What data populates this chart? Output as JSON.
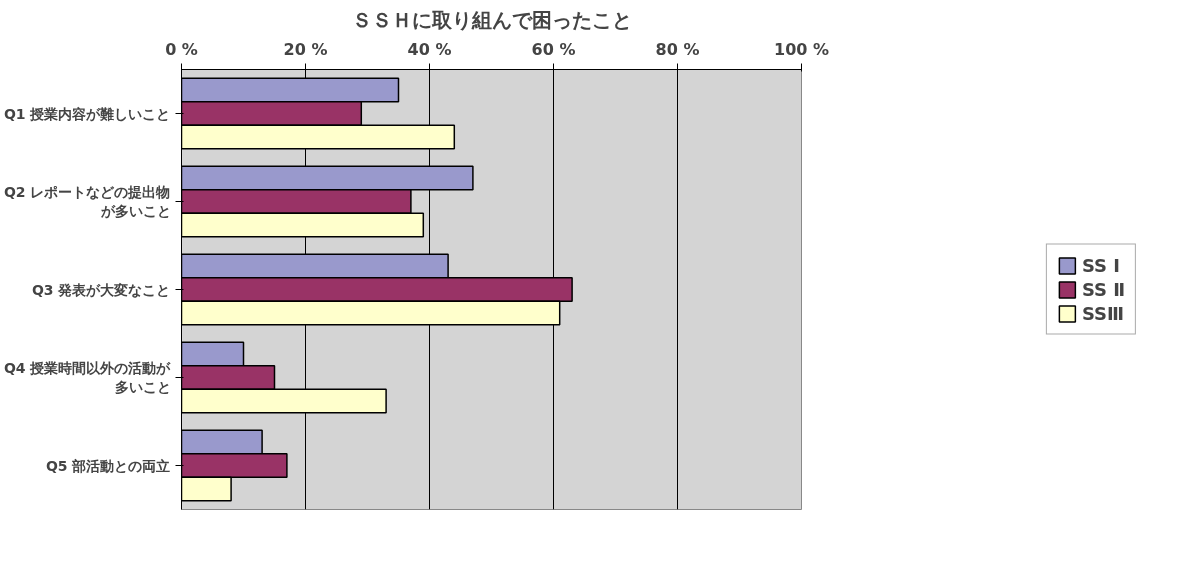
{
  "chart_data": {
    "type": "bar",
    "orientation": "horizontal",
    "title": "ＳＳＨに取り組んで困ったこと",
    "categories": [
      "Q1 授業内容が難しいこと",
      "Q2 レポートなどの提出物が多いこと",
      "Q3 発表が大変なこと",
      "Q4 授業時間以外の活動が多いこと",
      "Q5 部活動との両立"
    ],
    "series": [
      {
        "name": "SS Ⅰ",
        "color": "#9999cc",
        "values": [
          35,
          47,
          43,
          10,
          13
        ]
      },
      {
        "name": "SS Ⅱ",
        "color": "#993366",
        "values": [
          29,
          37,
          63,
          15,
          17
        ]
      },
      {
        "name": "SSⅢ",
        "color": "#ffffcc",
        "values": [
          44,
          39,
          61,
          33,
          8
        ]
      }
    ],
    "xlim": [
      0,
      100
    ],
    "xticks": [
      {
        "value": 0,
        "label": "0 %"
      },
      {
        "value": 20,
        "label": "20 %"
      },
      {
        "value": 40,
        "label": "40 %"
      },
      {
        "value": 60,
        "label": "60 %"
      },
      {
        "value": 80,
        "label": "80 %"
      },
      {
        "value": 100,
        "label": "100 %"
      }
    ],
    "grid": "x",
    "legend": "right"
  }
}
